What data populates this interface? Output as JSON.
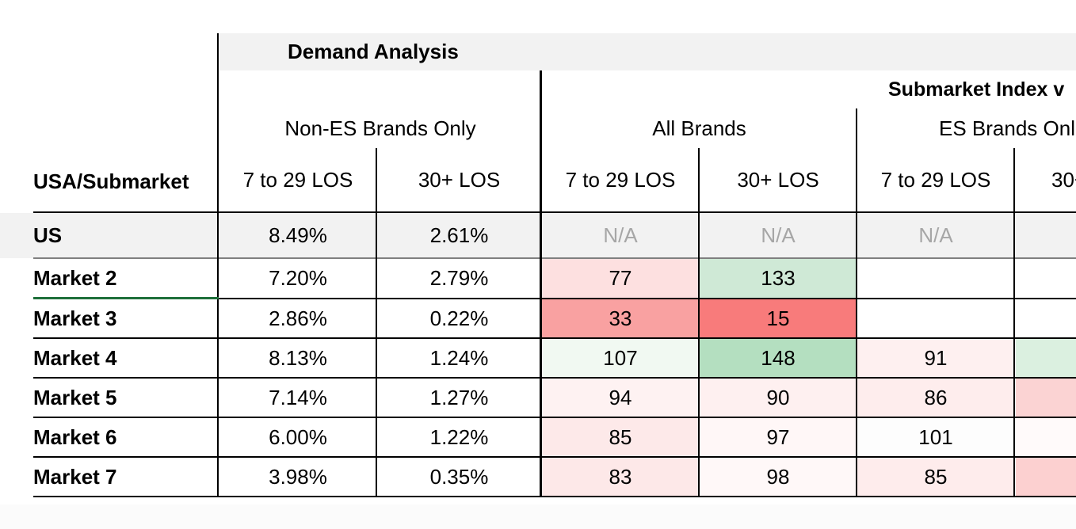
{
  "headers": {
    "demand_analysis": "Demand Analysis",
    "submarket_index": "Submarket Index v",
    "groups": {
      "non_es": "Non-ES Brands Only",
      "all_brands": "All Brands",
      "es_brands": "ES Brands Onl"
    },
    "corner": "USA/Submarket",
    "sub": {
      "los_7_29": "7 to 29 LOS",
      "los_30": "30+ LOS",
      "los_30_cut": "30+"
    }
  },
  "rows": [
    {
      "label": "US",
      "non_es_7_29": "8.49%",
      "non_es_30": "2.61%",
      "all_7_29": "N/A",
      "all_30": "N/A",
      "es_7_29": "N/A"
    },
    {
      "label": "Market 2",
      "non_es_7_29": "7.20%",
      "non_es_30": "2.79%",
      "all_7_29": "77",
      "all_30": "133",
      "es_7_29": ""
    },
    {
      "label": "Market 3",
      "non_es_7_29": "2.86%",
      "non_es_30": "0.22%",
      "all_7_29": "33",
      "all_30": "15",
      "es_7_29": ""
    },
    {
      "label": "Market 4",
      "non_es_7_29": "8.13%",
      "non_es_30": "1.24%",
      "all_7_29": "107",
      "all_30": "148",
      "es_7_29": "91"
    },
    {
      "label": "Market 5",
      "non_es_7_29": "7.14%",
      "non_es_30": "1.27%",
      "all_7_29": "94",
      "all_30": "90",
      "es_7_29": "86"
    },
    {
      "label": "Market 6",
      "non_es_7_29": "6.00%",
      "non_es_30": "1.22%",
      "all_7_29": "85",
      "all_30": "97",
      "es_7_29": "101"
    },
    {
      "label": "Market 7",
      "non_es_7_29": "3.98%",
      "non_es_30": "0.35%",
      "all_7_29": "83",
      "all_30": "98",
      "es_7_29": "85"
    }
  ],
  "colors": {
    "header_grey": "#f2f2f2",
    "na_text": "#a6a6a6",
    "selection_green": "#1e6f3a",
    "heat": {
      "m2_all_7_29": "#fde0e0",
      "m2_all_30": "#cfe9d6",
      "m3_all_7_29": "#f9a1a1",
      "m3_all_30": "#f87b7b",
      "m4_all_7_29": "#f1f9f2",
      "m4_all_30": "#b4dfc0",
      "m4_es_7_29": "#fef0f0",
      "m4_es_30": "#dbf0e0",
      "m5_all_7_29": "#fef2f2",
      "m5_all_30": "#fef0f0",
      "m5_es_7_29": "#feeded",
      "m5_es_30": "#fbd3d3",
      "m6_all_7_29": "#fde9e9",
      "m6_all_30": "#fff7f7",
      "m6_es_7_29": "#fdfdfd",
      "m6_es_30": "#fffafa",
      "m7_all_7_29": "#fde8e8",
      "m7_all_30": "#fff8f8",
      "m7_es_7_29": "#feecec",
      "m7_es_30": "#fcd0d0"
    }
  }
}
